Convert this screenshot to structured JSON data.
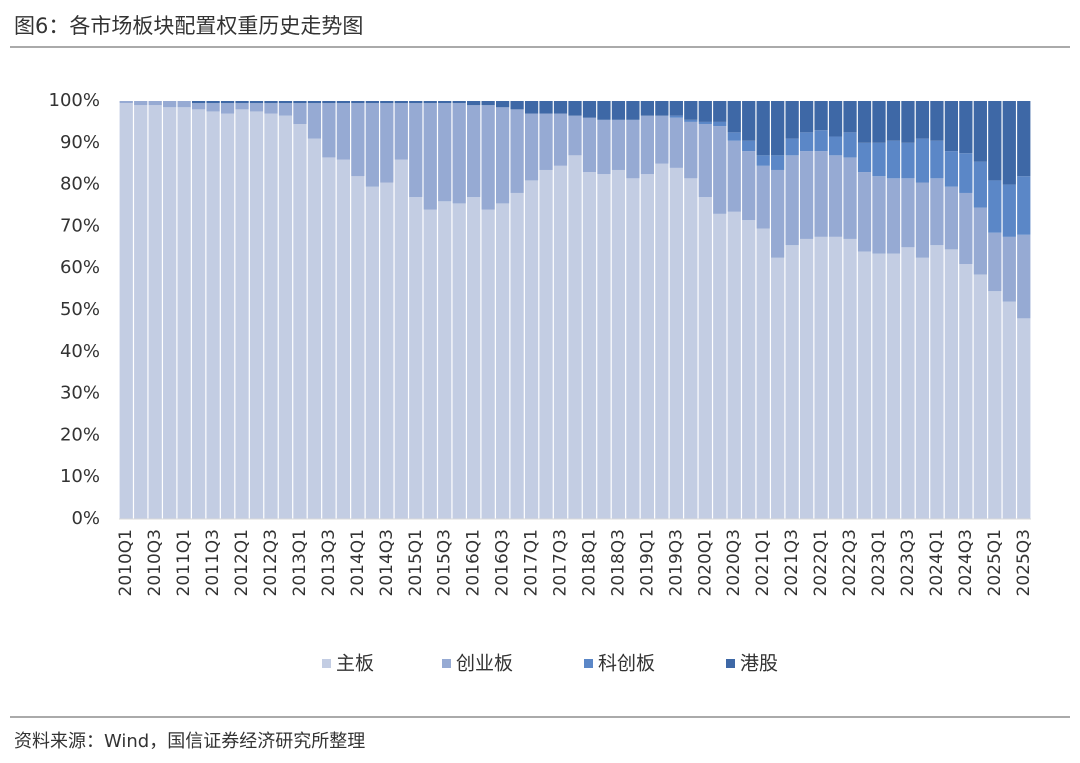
{
  "chart_data": {
    "type": "bar",
    "stacked": true,
    "title": "图6：各市场板块配置权重历史走势图",
    "source": "资料来源：Wind，国信证券经济研究所整理",
    "categories": [
      "2010Q1",
      null,
      "2010Q3",
      null,
      "2011Q1",
      null,
      "2011Q3",
      null,
      "2012Q1",
      null,
      "2012Q3",
      null,
      "2013Q1",
      null,
      "2013Q3",
      null,
      "2014Q1",
      null,
      "2014Q3",
      null,
      "2015Q1",
      null,
      "2015Q3",
      null,
      "2016Q1",
      null,
      "2016Q3",
      null,
      "2017Q1",
      null,
      "2017Q3",
      null,
      "2018Q1",
      null,
      "2018Q3",
      null,
      "2019Q1",
      null,
      "2019Q3",
      null,
      "2020Q1",
      null,
      "2020Q3",
      null,
      "2021Q1",
      null,
      "2021Q3",
      null,
      "2022Q1",
      null,
      "2022Q3",
      null,
      "2023Q1",
      null,
      "2023Q3",
      null,
      "2024Q1",
      null,
      "2024Q3",
      null,
      "2025Q1",
      null,
      "2025Q3"
    ],
    "series": [
      {
        "name": "主板",
        "color": "#c3cde3",
        "values": [
          99.5,
          99,
          99,
          98.5,
          98.5,
          98,
          97.5,
          97,
          98,
          97.5,
          97,
          96.5,
          94.5,
          91,
          86.5,
          86,
          82,
          79.5,
          80.5,
          86,
          77,
          74,
          76,
          75.5,
          77,
          74,
          75.5,
          78,
          81,
          83.5,
          84.5,
          87,
          83,
          82.5,
          83.5,
          81.5,
          82.5,
          85,
          84,
          81.5,
          77,
          73,
          73.5,
          71.5,
          69.5,
          62.5,
          65.5,
          67,
          67.5,
          67.5,
          67,
          64,
          63.5,
          63.5,
          65,
          62.5,
          65.5,
          64.5,
          61,
          58.5,
          54.5,
          52,
          48
        ]
      },
      {
        "name": "创业板",
        "color": "#96aad3",
        "values": [
          0.5,
          1,
          1,
          1.5,
          1.5,
          1.5,
          2,
          2.5,
          1.5,
          2,
          2.5,
          3,
          5,
          8.5,
          13,
          13.5,
          17.5,
          20,
          19,
          13.5,
          22.5,
          25.5,
          23.5,
          24,
          22,
          25,
          23,
          20,
          16,
          13.5,
          12.5,
          9.5,
          13,
          13,
          12,
          14,
          14,
          11.5,
          12,
          13.5,
          17.5,
          21,
          17,
          16.5,
          15,
          21,
          21.5,
          21,
          20.5,
          19.5,
          19.5,
          19,
          18.5,
          18,
          16.5,
          18,
          16,
          15,
          17,
          16,
          14,
          15.5,
          20
        ]
      },
      {
        "name": "科创板",
        "color": "#5b87c7",
        "values": [
          0,
          0,
          0,
          0,
          0,
          0,
          0,
          0,
          0,
          0,
          0,
          0,
          0,
          0,
          0,
          0,
          0,
          0,
          0,
          0,
          0,
          0,
          0,
          0,
          0,
          0,
          0,
          0,
          0,
          0,
          0,
          0,
          0,
          0,
          0,
          0,
          0,
          0,
          0.5,
          0.5,
          0.5,
          1,
          2,
          2.5,
          2.5,
          3.5,
          4,
          4.5,
          5,
          4.5,
          6,
          7,
          8,
          9,
          8.5,
          10.5,
          9,
          8.5,
          9.5,
          11,
          12.5,
          12.5,
          14
        ]
      },
      {
        "name": "港股",
        "color": "#3e68a6",
        "values": [
          0,
          0,
          0,
          0,
          0,
          0.5,
          0.5,
          0.5,
          0.5,
          0.5,
          0.5,
          0.5,
          0.5,
          0.5,
          0.5,
          0.5,
          0.5,
          0.5,
          0.5,
          0.5,
          0.5,
          0.5,
          0.5,
          0.5,
          1,
          1,
          1.5,
          2,
          3,
          3,
          3,
          3.5,
          4,
          4.5,
          4.5,
          4.5,
          3.5,
          3.5,
          3.5,
          4.5,
          5,
          5,
          7.5,
          9.5,
          13,
          13,
          9,
          7.5,
          7,
          8.5,
          7.5,
          10,
          10,
          9.5,
          10,
          9,
          9.5,
          12,
          12.5,
          14.5,
          19,
          20,
          18
        ]
      }
    ],
    "ylim": [
      0,
      100
    ],
    "yticks": [
      {
        "value": 0,
        "label": "0%"
      },
      {
        "value": 10,
        "label": "10%"
      },
      {
        "value": 20,
        "label": "20%"
      },
      {
        "value": 30,
        "label": "30%"
      },
      {
        "value": 40,
        "label": "40%"
      },
      {
        "value": 50,
        "label": "50%"
      },
      {
        "value": 60,
        "label": "60%"
      },
      {
        "value": 70,
        "label": "70%"
      },
      {
        "value": 80,
        "label": "80%"
      },
      {
        "value": 90,
        "label": "90%"
      },
      {
        "value": 100,
        "label": "100%"
      }
    ],
    "grid": false,
    "legend": "bottom"
  }
}
